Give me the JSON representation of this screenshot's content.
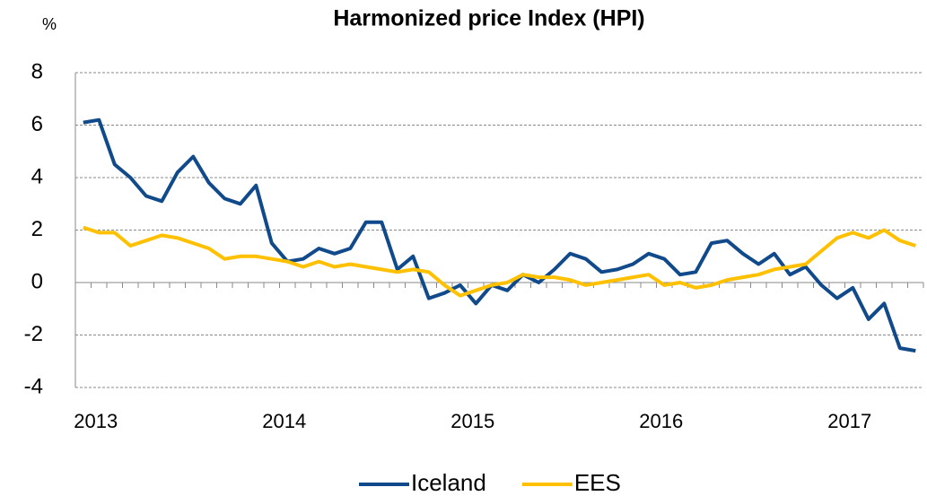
{
  "chart_data": {
    "type": "line",
    "title": "Harmonized price Index (HPI)",
    "y_label": "%",
    "categories": [
      "2013",
      null,
      null,
      null,
      null,
      null,
      null,
      null,
      null,
      null,
      null,
      null,
      "2014",
      null,
      null,
      null,
      null,
      null,
      null,
      null,
      null,
      null,
      null,
      null,
      "2015",
      null,
      null,
      null,
      null,
      null,
      null,
      null,
      null,
      null,
      null,
      null,
      "2016",
      null,
      null,
      null,
      null,
      null,
      null,
      null,
      null,
      null,
      null,
      null,
      "2017",
      null,
      null,
      null,
      null,
      null
    ],
    "series": [
      {
        "name": "Iceland",
        "color": "#114a8b",
        "values": [
          6.1,
          6.2,
          4.5,
          4.0,
          3.3,
          3.1,
          4.2,
          4.8,
          3.8,
          3.2,
          3.0,
          3.7,
          1.5,
          0.8,
          0.9,
          1.3,
          1.1,
          1.3,
          2.3,
          2.3,
          0.5,
          1.0,
          -0.6,
          -0.4,
          -0.1,
          -0.8,
          -0.1,
          -0.3,
          0.3,
          0.0,
          0.5,
          1.1,
          0.9,
          0.4,
          0.5,
          0.7,
          1.1,
          0.9,
          0.3,
          0.4,
          1.5,
          1.6,
          1.1,
          0.7,
          1.1,
          0.3,
          0.6,
          -0.1,
          -0.6,
          -0.2,
          -1.4,
          -0.8,
          -2.5,
          -2.6
        ]
      },
      {
        "name": "EES",
        "color": "#ffc000",
        "values": [
          2.1,
          1.9,
          1.9,
          1.4,
          1.6,
          1.8,
          1.7,
          1.5,
          1.3,
          0.9,
          1.0,
          1.0,
          0.9,
          0.8,
          0.6,
          0.8,
          0.6,
          0.7,
          0.6,
          0.5,
          0.4,
          0.5,
          0.4,
          -0.1,
          -0.5,
          -0.3,
          -0.1,
          0.0,
          0.3,
          0.2,
          0.2,
          0.1,
          -0.1,
          0.0,
          0.1,
          0.2,
          0.3,
          -0.1,
          0.0,
          -0.2,
          -0.1,
          0.1,
          0.2,
          0.3,
          0.5,
          0.6,
          0.7,
          1.2,
          1.7,
          1.9,
          1.7,
          2.0,
          1.6,
          1.4
        ]
      }
    ],
    "ylim": [
      -4,
      8
    ],
    "yticks": [
      -4,
      -2,
      0,
      2,
      4,
      6,
      8
    ],
    "grid": true,
    "legend": "bottom"
  }
}
